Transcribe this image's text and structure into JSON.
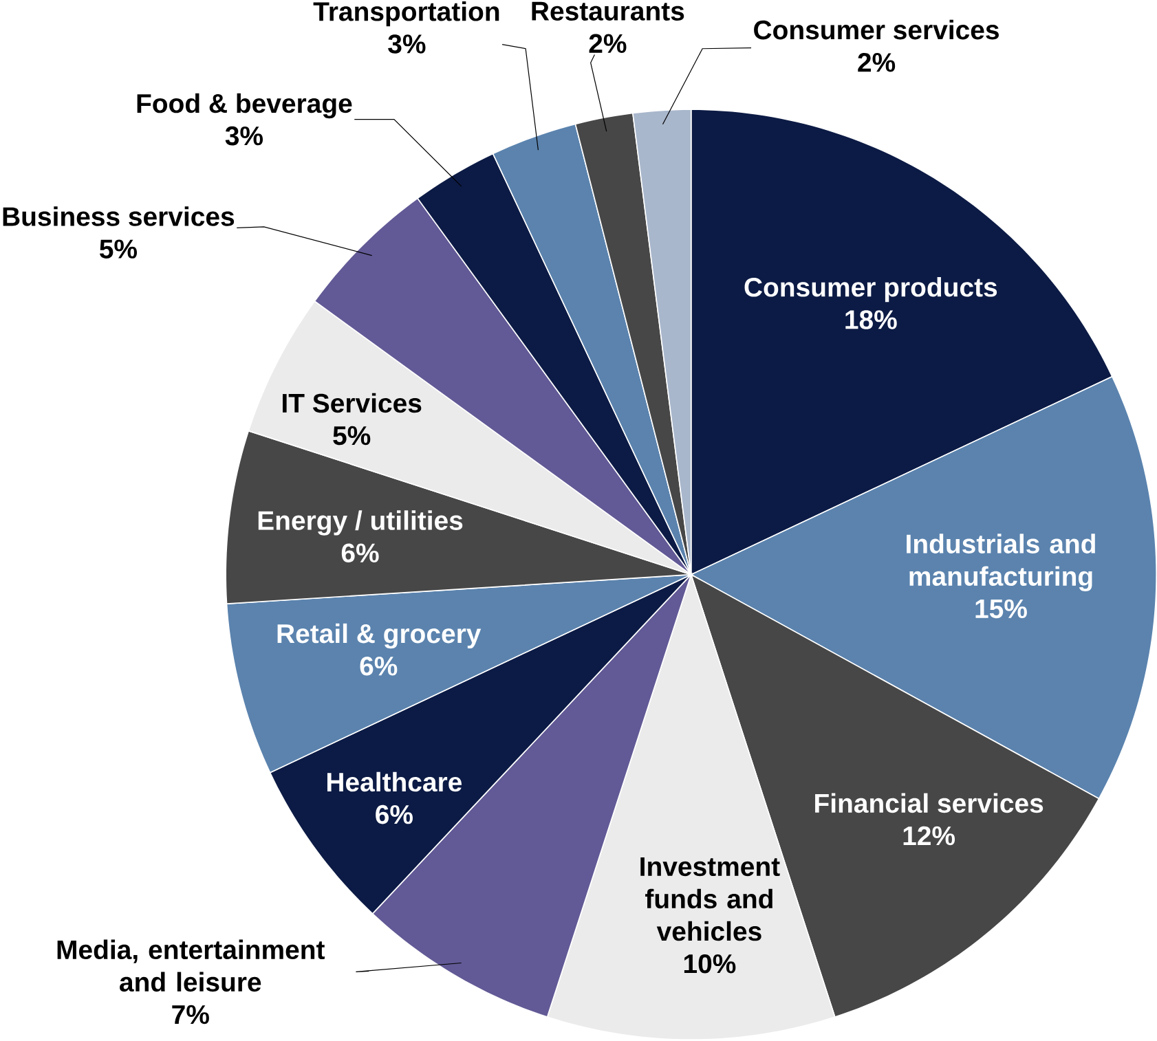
{
  "chart_data": {
    "type": "pie",
    "categories": [
      "Consumer products",
      "Industrials and manufacturing",
      "Financial services",
      "Investment funds and vehicles",
      "Media, entertainment and leisure",
      "Healthcare",
      "Retail & grocery",
      "Energy / utilities",
      "IT Services",
      "Business services",
      "Food & beverage",
      "Transportation",
      "Restaurants",
      "Consumer services"
    ],
    "values": [
      18,
      15,
      12,
      10,
      7,
      6,
      6,
      6,
      5,
      5,
      3,
      3,
      2,
      2
    ],
    "value_labels": [
      "18%",
      "15%",
      "12%",
      "10%",
      "7%",
      "6%",
      "6%",
      "6%",
      "5%",
      "5%",
      "3%",
      "3%",
      "2%",
      "2%"
    ],
    "colors": [
      "#0c1b45",
      "#5b83ae",
      "#474747",
      "#ebebeb",
      "#625a96",
      "#0c1b45",
      "#5b83ae",
      "#474747",
      "#ebebeb",
      "#625a96",
      "#0c1b45",
      "#5b83ae",
      "#474747",
      "#a9b7cc"
    ]
  }
}
